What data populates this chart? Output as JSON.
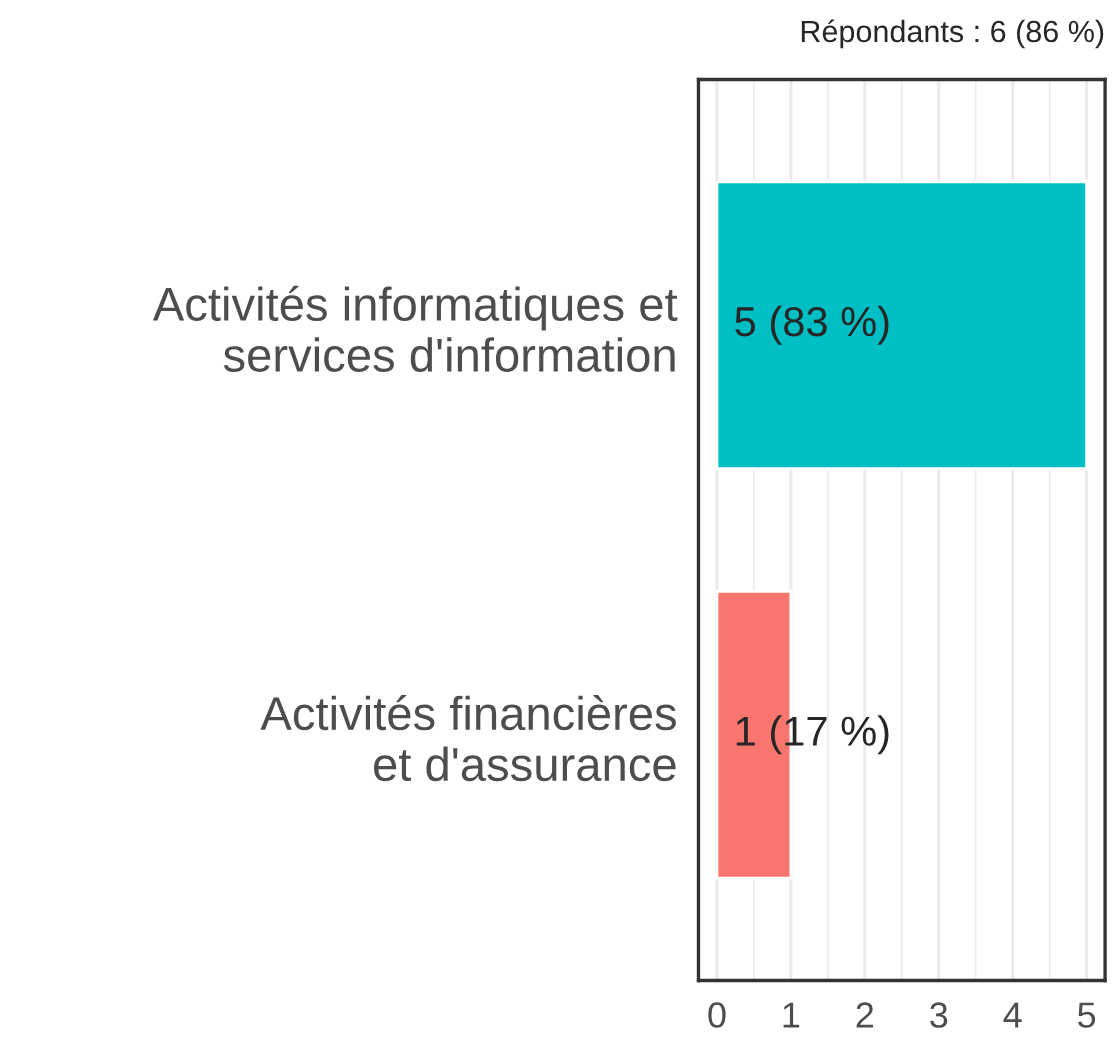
{
  "chart_data": {
    "type": "bar",
    "orientation": "horizontal",
    "title": "Répondants : 6 (86 %)",
    "categories": [
      "Activités informatiques et\nservices d'information",
      "Activités financières\net d'assurance"
    ],
    "values": [
      5,
      1
    ],
    "colors": [
      "#00bfc4",
      "#f8766d"
    ],
    "value_labels": [
      "5 (83 %)",
      "1 (17 %)"
    ],
    "xlim": [
      -0.25,
      5.25
    ],
    "xticks": [
      0,
      1,
      2,
      3,
      4,
      5
    ],
    "grid": "x"
  }
}
